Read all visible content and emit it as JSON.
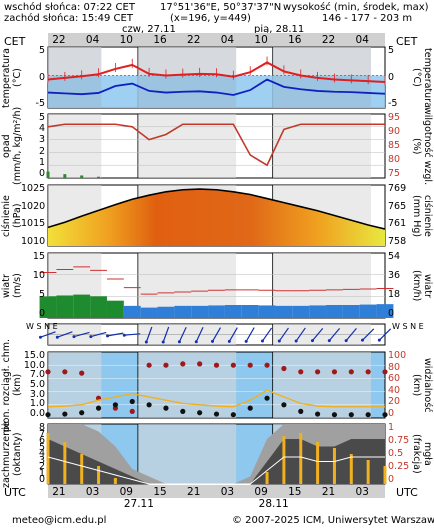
{
  "header": {
    "sunrise": "wschód słońca: 07:22 CET",
    "sunset": "zachód słońca: 15:49 CET",
    "coords": "17°51'36\"E, 50°37'37\"N",
    "grid": "(x=196, y=449)",
    "elev_label": "wysokość (min, środek, max)",
    "elev_values": "146 - 177 - 203 m",
    "date1": "czw, 27.11",
    "date2": "pią, 28.11",
    "tz_left": "CET",
    "tz_right": "CET",
    "tz_bottom_left": "UTC",
    "tz_bottom_right": "UTC"
  },
  "top_axis_labels": [
    "22",
    "04",
    "10",
    "16",
    "22",
    "04",
    "10",
    "16",
    "22",
    "04"
  ],
  "bottom_axis_labels": [
    "21",
    "03",
    "09",
    "15",
    "21",
    "03",
    "09",
    "15",
    "21",
    "03"
  ],
  "bottom_dates": [
    "27.11",
    "28.11"
  ],
  "footer": {
    "email": "meteo@icm.edu.pl",
    "copyright": "© 2007-2025 ICM, Uniwersytet Warszawski"
  },
  "colors": {
    "temp_line": "#e02020",
    "dew_line": "#1020c0",
    "precip_bar": "#2a8a2a",
    "humidity_line": "#c0392b",
    "pressure_line": "#000000",
    "wind_bar_dark": "#1f8b2f",
    "wind_bar_blue": "#2f7fd8",
    "gust_mark": "#d03030",
    "night_shade": "#d9d9d9",
    "panel_blue": "#8ec8ee",
    "cloud_low": "#4a4a4a",
    "cloud_total": "#a0a0a0",
    "fog_bar": "#f0b020"
  },
  "chart_data": [
    {
      "type": "line",
      "panel": "temperature",
      "ylabel_left": "temperatura",
      "unit_left": "(°C)",
      "ylabel_right": "temperatura",
      "unit_right": "(°C)",
      "y_ticks": [
        "5",
        "0",
        "-5"
      ],
      "y_ticks_right": [
        "5",
        "0",
        "-5"
      ],
      "ylim": [
        -8,
        7
      ],
      "x": [
        0,
        3,
        6,
        9,
        12,
        15,
        18,
        21,
        24,
        27,
        30,
        33,
        36,
        39,
        42,
        45,
        48,
        51,
        54,
        57,
        60
      ],
      "series": [
        {
          "values": [
            -1.0,
            -0.6,
            -0.2,
            0.3,
            1.6,
            2.6,
            0.4,
            0.0,
            0.2,
            0.4,
            0.3,
            -0.3,
            0.8,
            3.2,
            1.0,
            0.0,
            -0.6,
            -1.0,
            -1.2,
            -1.4,
            -1.6
          ]
        },
        {
          "values": [
            -4.2,
            -4.4,
            -4.6,
            -4.3,
            -2.6,
            -2.0,
            -3.8,
            -4.2,
            -4.0,
            -3.9,
            -4.2,
            -4.8,
            -3.6,
            -1.0,
            -2.8,
            -3.4,
            -3.8,
            -4.0,
            -4.1,
            -4.3,
            -4.5
          ]
        }
      ]
    },
    {
      "type": "bar",
      "panel": "precipitation",
      "ylabel_left": "opad",
      "unit_left": "(mm/h, kg/m²/h)",
      "ylabel_right": "wilgotność wzgl.",
      "unit_right": "(%)",
      "y_ticks": [
        "5",
        "4",
        "3",
        "2",
        "1",
        "0"
      ],
      "y_ticks_right": [
        "95",
        "90",
        "85",
        "80",
        "75"
      ],
      "ylim": [
        0,
        5
      ],
      "ylim_right": [
        75,
        100
      ],
      "x": [
        0,
        3,
        6,
        9,
        12,
        15,
        18,
        21,
        24,
        27,
        30,
        33,
        36,
        39,
        42,
        45,
        48,
        51,
        54,
        57,
        60
      ],
      "series": [
        {
          "values": [
            0.5,
            0.3,
            0.2,
            0.1,
            0.0,
            0.0,
            0,
            0,
            0,
            0,
            0,
            0,
            0,
            0,
            0,
            0,
            0,
            0,
            0,
            0,
            0
          ]
        },
        {
          "values": [
            95,
            96,
            96,
            96,
            96,
            95,
            90,
            92,
            96,
            96,
            96,
            96,
            84,
            80,
            94,
            96,
            96,
            96,
            96,
            96,
            96
          ]
        }
      ]
    },
    {
      "type": "area",
      "panel": "pressure",
      "ylabel_left": "ciśnienie",
      "unit_left": "(hPa)",
      "ylabel_right": "ciśnienie",
      "unit_right": "(mm Hg)",
      "y_ticks": [
        "1025",
        "1020",
        "1015",
        "1010"
      ],
      "y_ticks_right": [
        "769",
        "765",
        "761",
        "758"
      ],
      "ylim": [
        1008,
        1026
      ],
      "x": [
        0,
        3,
        6,
        9,
        12,
        15,
        18,
        21,
        24,
        27,
        30,
        33,
        36,
        39,
        42,
        45,
        48,
        51,
        54,
        57,
        60
      ],
      "series": [
        {
          "values": [
            1013.5,
            1015.0,
            1016.8,
            1018.5,
            1020.2,
            1021.8,
            1023.0,
            1024.0,
            1024.6,
            1024.8,
            1024.6,
            1024.0,
            1023.2,
            1022.0,
            1020.8,
            1019.6,
            1018.4,
            1017.0,
            1015.6,
            1014.2,
            1013.0
          ]
        }
      ]
    },
    {
      "type": "bar",
      "panel": "wind",
      "ylabel_left": "wiatr",
      "unit_left": "(m/s)",
      "ylabel_right": "wiatr",
      "unit_right": "(km/h)",
      "y_ticks": [
        "15",
        "10",
        "5",
        "0"
      ],
      "y_ticks_right": [
        "54",
        "36",
        "18",
        "0"
      ],
      "ylim": [
        0,
        15
      ],
      "x": [
        0,
        3,
        6,
        9,
        12,
        15,
        18,
        21,
        24,
        27,
        30,
        33,
        36,
        39,
        42,
        45,
        48,
        51,
        54,
        57,
        60
      ],
      "series": [
        {
          "values": [
            5.0,
            5.2,
            5.4,
            5.0,
            4.0,
            2.8,
            2.4,
            2.6,
            2.8,
            2.8,
            2.9,
            3.0,
            3.0,
            2.9,
            2.8,
            2.8,
            2.9,
            3.0,
            3.0,
            3.1,
            3.2
          ]
        },
        {
          "values": [
            10.5,
            11.2,
            11.8,
            11.0,
            9.0,
            7.0,
            5.5,
            5.8,
            6.0,
            6.2,
            6.4,
            6.5,
            6.5,
            6.4,
            6.3,
            6.3,
            6.4,
            6.5,
            6.6,
            6.7,
            6.8
          ]
        }
      ]
    },
    {
      "type": "scatter",
      "panel": "wind_direction",
      "ylabel_left": "W S N E",
      "ylabel_right": "W S N E",
      "x": [
        0,
        3,
        6,
        9,
        12,
        15,
        18,
        21,
        24,
        27,
        30,
        33,
        36,
        39,
        42,
        45,
        48,
        51,
        54,
        57,
        60
      ],
      "series": [
        {
          "values": [
            250,
            250,
            255,
            255,
            260,
            265,
            200,
            200,
            205,
            205,
            210,
            210,
            210,
            215,
            215,
            215,
            220,
            220,
            220,
            225,
            225
          ]
        }
      ]
    },
    {
      "type": "scatter",
      "panel": "instability_visibility",
      "ylabel_left": "pion. rozciągł. chm.",
      "unit_left": "(km)",
      "ylabel_right": "widzialność",
      "unit_right": "(km)",
      "y_ticks": [
        "15.0",
        "10.0",
        "7.0",
        "5.0",
        "3.0",
        "1.0",
        "0.0"
      ],
      "y_ticks_right": [
        "100",
        "80",
        "60",
        "40",
        "20",
        "0"
      ],
      "ylim_right": [
        0,
        100
      ],
      "x": [
        0,
        3,
        6,
        9,
        12,
        15,
        18,
        21,
        24,
        27,
        30,
        33,
        36,
        39,
        42,
        45,
        48,
        51,
        54,
        57,
        60
      ],
      "series": [
        {
          "values": [
            70,
            70,
            68,
            30,
            15,
            10,
            80,
            80,
            82,
            82,
            80,
            80,
            80,
            80,
            75,
            70,
            70,
            70,
            70,
            70,
            70
          ]
        },
        {
          "values": [
            5,
            6,
            8,
            15,
            20,
            25,
            20,
            15,
            10,
            8,
            6,
            5,
            15,
            30,
            20,
            10,
            6,
            5,
            5,
            5,
            5
          ]
        }
      ]
    },
    {
      "type": "area",
      "panel": "cloud_fog",
      "ylabel_left": "zachmurzenie",
      "unit_left": "(oktanty)",
      "ylabel_right": "mgła",
      "unit_right": "(frakcja)",
      "y_ticks": [
        "8",
        "7",
        "6",
        "5",
        "4",
        "3",
        "2",
        "1",
        "0"
      ],
      "y_ticks_right": [
        "1",
        "0.75",
        "0.5",
        "0.25",
        "0"
      ],
      "ylim": [
        0,
        8
      ],
      "ylim_right": [
        0,
        1
      ],
      "x": [
        0,
        3,
        6,
        9,
        12,
        15,
        18,
        21,
        24,
        27,
        30,
        33,
        36,
        39,
        42,
        45,
        48,
        51,
        54,
        57,
        60
      ],
      "series": [
        {
          "values": [
            8,
            8,
            8,
            7,
            5,
            2,
            1,
            0,
            0,
            0,
            0,
            0,
            1,
            6,
            8,
            8,
            8,
            8,
            8,
            8,
            8
          ]
        },
        {
          "values": [
            6,
            5,
            4,
            3,
            2,
            1,
            0,
            0,
            0,
            0,
            0,
            0,
            0,
            3,
            6,
            6,
            5,
            5,
            6,
            6,
            6
          ]
        },
        {
          "values": [
            0.85,
            0.7,
            0.5,
            0.3,
            0.1,
            0,
            0,
            0,
            0,
            0,
            0,
            0,
            0,
            0.2,
            0.8,
            0.85,
            0.7,
            0.6,
            0.5,
            0.4,
            0.3
          ]
        }
      ]
    }
  ]
}
